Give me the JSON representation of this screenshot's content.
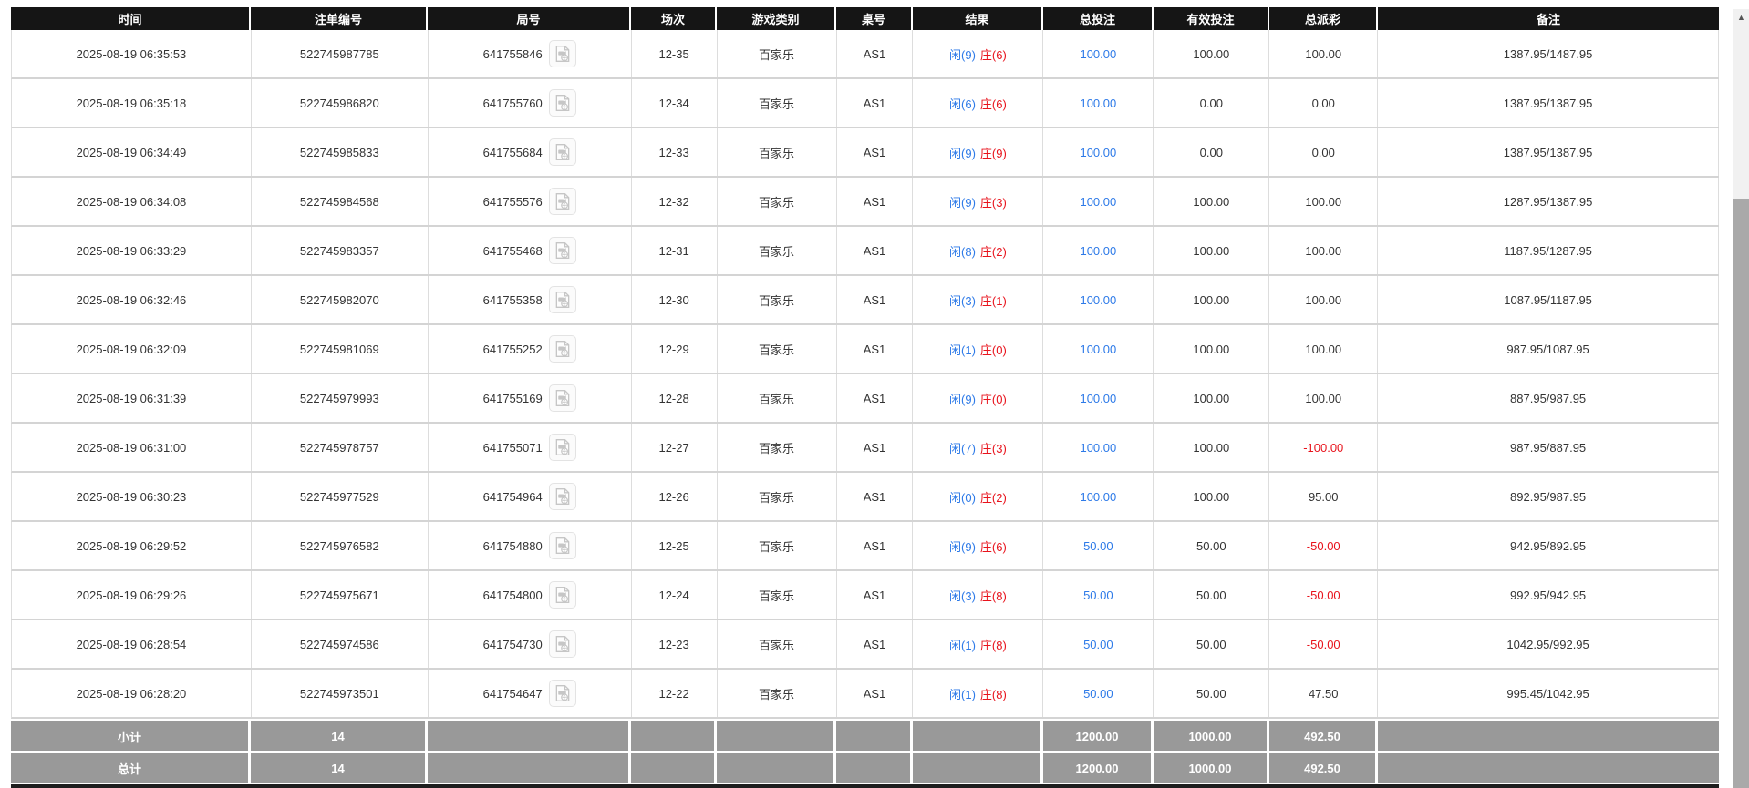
{
  "colors": {
    "player_blue": "#2d7ae8",
    "banker_red": "#e8131c",
    "bet_link_blue": "#2d7ae8",
    "negative_red": "#e8131c",
    "header_bg": "#151515",
    "footer_bg": "#999999"
  },
  "scrollbar": {
    "up_arrow": "▲"
  },
  "table": {
    "columns": [
      "时间",
      "注单编号",
      "局号",
      "场次",
      "游戏类别",
      "桌号",
      "结果",
      "总投注",
      "有效投注",
      "总派彩",
      "备注"
    ],
    "rows": [
      {
        "time": "2025-08-19 06:35:53",
        "bet_no": "522745987785",
        "round_no": "641755846",
        "session": "12-35",
        "game": "百家乐",
        "table_no": "AS1",
        "result": {
          "player": "闲(9)",
          "banker": "庄(6)"
        },
        "total_bet": "100.00",
        "valid_bet": "100.00",
        "payout": "100.00",
        "remark": "1387.95/1487.95"
      },
      {
        "time": "2025-08-19 06:35:18",
        "bet_no": "522745986820",
        "round_no": "641755760",
        "session": "12-34",
        "game": "百家乐",
        "table_no": "AS1",
        "result": {
          "player": "闲(6)",
          "banker": "庄(6)"
        },
        "total_bet": "100.00",
        "valid_bet": "0.00",
        "payout": "0.00",
        "remark": "1387.95/1387.95"
      },
      {
        "time": "2025-08-19 06:34:49",
        "bet_no": "522745985833",
        "round_no": "641755684",
        "session": "12-33",
        "game": "百家乐",
        "table_no": "AS1",
        "result": {
          "player": "闲(9)",
          "banker": "庄(9)"
        },
        "total_bet": "100.00",
        "valid_bet": "0.00",
        "payout": "0.00",
        "remark": "1387.95/1387.95"
      },
      {
        "time": "2025-08-19 06:34:08",
        "bet_no": "522745984568",
        "round_no": "641755576",
        "session": "12-32",
        "game": "百家乐",
        "table_no": "AS1",
        "result": {
          "player": "闲(9)",
          "banker": "庄(3)"
        },
        "total_bet": "100.00",
        "valid_bet": "100.00",
        "payout": "100.00",
        "remark": "1287.95/1387.95"
      },
      {
        "time": "2025-08-19 06:33:29",
        "bet_no": "522745983357",
        "round_no": "641755468",
        "session": "12-31",
        "game": "百家乐",
        "table_no": "AS1",
        "result": {
          "player": "闲(8)",
          "banker": "庄(2)"
        },
        "total_bet": "100.00",
        "valid_bet": "100.00",
        "payout": "100.00",
        "remark": "1187.95/1287.95"
      },
      {
        "time": "2025-08-19 06:32:46",
        "bet_no": "522745982070",
        "round_no": "641755358",
        "session": "12-30",
        "game": "百家乐",
        "table_no": "AS1",
        "result": {
          "player": "闲(3)",
          "banker": "庄(1)"
        },
        "total_bet": "100.00",
        "valid_bet": "100.00",
        "payout": "100.00",
        "remark": "1087.95/1187.95"
      },
      {
        "time": "2025-08-19 06:32:09",
        "bet_no": "522745981069",
        "round_no": "641755252",
        "session": "12-29",
        "game": "百家乐",
        "table_no": "AS1",
        "result": {
          "player": "闲(1)",
          "banker": "庄(0)"
        },
        "total_bet": "100.00",
        "valid_bet": "100.00",
        "payout": "100.00",
        "remark": "987.95/1087.95"
      },
      {
        "time": "2025-08-19 06:31:39",
        "bet_no": "522745979993",
        "round_no": "641755169",
        "session": "12-28",
        "game": "百家乐",
        "table_no": "AS1",
        "result": {
          "player": "闲(9)",
          "banker": "庄(0)"
        },
        "total_bet": "100.00",
        "valid_bet": "100.00",
        "payout": "100.00",
        "remark": "887.95/987.95"
      },
      {
        "time": "2025-08-19 06:31:00",
        "bet_no": "522745978757",
        "round_no": "641755071",
        "session": "12-27",
        "game": "百家乐",
        "table_no": "AS1",
        "result": {
          "player": "闲(7)",
          "banker": "庄(3)"
        },
        "total_bet": "100.00",
        "valid_bet": "100.00",
        "payout": "-100.00",
        "remark": "987.95/887.95"
      },
      {
        "time": "2025-08-19 06:30:23",
        "bet_no": "522745977529",
        "round_no": "641754964",
        "session": "12-26",
        "game": "百家乐",
        "table_no": "AS1",
        "result": {
          "player": "闲(0)",
          "banker": "庄(2)"
        },
        "total_bet": "100.00",
        "valid_bet": "100.00",
        "payout": "95.00",
        "remark": "892.95/987.95"
      },
      {
        "time": "2025-08-19 06:29:52",
        "bet_no": "522745976582",
        "round_no": "641754880",
        "session": "12-25",
        "game": "百家乐",
        "table_no": "AS1",
        "result": {
          "player": "闲(9)",
          "banker": "庄(6)"
        },
        "total_bet": "50.00",
        "valid_bet": "50.00",
        "payout": "-50.00",
        "remark": "942.95/892.95"
      },
      {
        "time": "2025-08-19 06:29:26",
        "bet_no": "522745975671",
        "round_no": "641754800",
        "session": "12-24",
        "game": "百家乐",
        "table_no": "AS1",
        "result": {
          "player": "闲(3)",
          "banker": "庄(8)"
        },
        "total_bet": "50.00",
        "valid_bet": "50.00",
        "payout": "-50.00",
        "remark": "992.95/942.95"
      },
      {
        "time": "2025-08-19 06:28:54",
        "bet_no": "522745974586",
        "round_no": "641754730",
        "session": "12-23",
        "game": "百家乐",
        "table_no": "AS1",
        "result": {
          "player": "闲(1)",
          "banker": "庄(8)"
        },
        "total_bet": "50.00",
        "valid_bet": "50.00",
        "payout": "-50.00",
        "remark": "1042.95/992.95"
      },
      {
        "time": "2025-08-19 06:28:20",
        "bet_no": "522745973501",
        "round_no": "641754647",
        "session": "12-22",
        "game": "百家乐",
        "table_no": "AS1",
        "result": {
          "player": "闲(1)",
          "banker": "庄(8)"
        },
        "total_bet": "50.00",
        "valid_bet": "50.00",
        "payout": "47.50",
        "remark": "995.45/1042.95"
      }
    ],
    "footer": [
      {
        "label": "小计",
        "count": "14",
        "total_bet": "1200.00",
        "valid_bet": "1000.00",
        "payout": "492.50"
      },
      {
        "label": "总计",
        "count": "14",
        "total_bet": "1200.00",
        "valid_bet": "1000.00",
        "payout": "492.50"
      }
    ]
  }
}
